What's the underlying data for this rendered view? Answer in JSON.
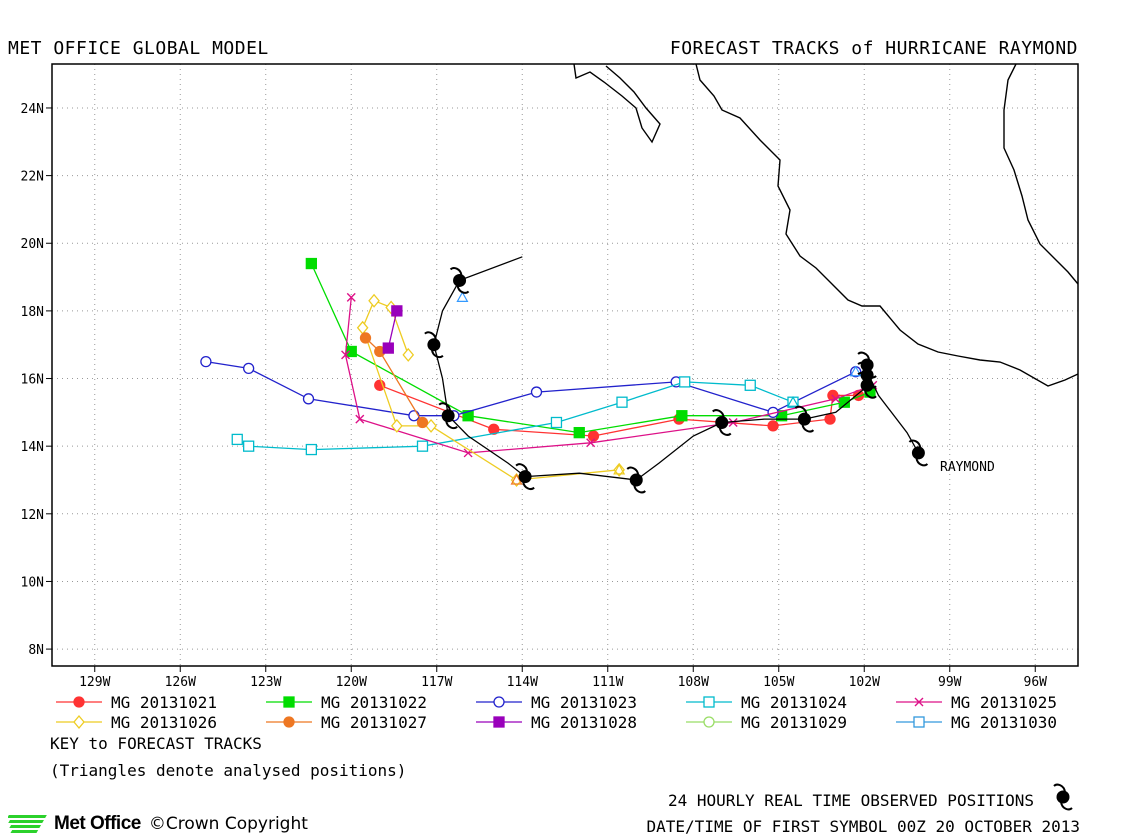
{
  "header": {
    "left": "MET OFFICE GLOBAL MODEL",
    "right": "FORECAST TRACKS of HURRICANE RAYMOND"
  },
  "map": {
    "lon_range": [
      -130.5,
      -94.5
    ],
    "lat_range": [
      7.5,
      25.3
    ],
    "lon_ticks": [
      "129W",
      "126W",
      "123W",
      "120W",
      "117W",
      "114W",
      "111W",
      "108W",
      "105W",
      "102W",
      "99W",
      "96W"
    ],
    "lat_ticks": [
      "8N",
      "10N",
      "12N",
      "14N",
      "16N",
      "18N",
      "20N",
      "22N",
      "24N"
    ],
    "storm_label": "RAYMOND",
    "observed_color": "#000000",
    "observed_track": [
      [
        -114.0,
        19.6
      ],
      [
        -116.2,
        18.9
      ],
      [
        -116.8,
        18.0
      ],
      [
        -117.1,
        17.0
      ],
      [
        -116.8,
        16.0
      ],
      [
        -116.6,
        14.9
      ],
      [
        -115.9,
        14.3
      ],
      [
        -114.5,
        13.5
      ],
      [
        -113.9,
        13.1
      ],
      [
        -112.0,
        13.2
      ],
      [
        -110.0,
        13.0
      ],
      [
        -109.2,
        13.5
      ],
      [
        -108.0,
        14.3
      ],
      [
        -107.0,
        14.7
      ],
      [
        -105.5,
        14.8
      ],
      [
        -104.1,
        14.8
      ],
      [
        -103.0,
        15.0
      ],
      [
        -102.0,
        15.7
      ],
      [
        -101.9,
        16.2
      ],
      [
        -101.5,
        15.5
      ],
      [
        -100.5,
        14.4
      ],
      [
        -100.1,
        13.8
      ]
    ],
    "observed_symbols": [
      [
        -116.2,
        18.9
      ],
      [
        -117.1,
        17.0
      ],
      [
        -116.6,
        14.9
      ],
      [
        -113.9,
        13.1
      ],
      [
        -110.0,
        13.0
      ],
      [
        -107.0,
        14.7
      ],
      [
        -104.1,
        14.8
      ],
      [
        -101.9,
        16.4
      ],
      [
        -101.9,
        16.1
      ],
      [
        -101.9,
        15.8
      ],
      [
        -100.1,
        13.8
      ]
    ],
    "tracks": [
      {
        "name": "MG 20131021",
        "color": "#ff3333",
        "marker": "circle",
        "fill": true,
        "points": [
          [
            -102.2,
            15.5
          ],
          [
            -103.1,
            15.5
          ],
          [
            -103.2,
            14.8
          ],
          [
            -105.2,
            14.6
          ],
          [
            -108.5,
            14.8
          ],
          [
            -111.5,
            14.3
          ],
          [
            -115.0,
            14.5
          ],
          [
            -119.0,
            15.8
          ]
        ]
      },
      {
        "name": "MG 20131022",
        "color": "#00dd00",
        "marker": "square",
        "fill": true,
        "points": [
          [
            -101.8,
            15.6
          ],
          [
            -102.7,
            15.3
          ],
          [
            -104.9,
            14.9
          ],
          [
            -108.4,
            14.9
          ],
          [
            -112.0,
            14.4
          ],
          [
            -115.9,
            14.9
          ],
          [
            -120.0,
            16.8
          ],
          [
            -121.4,
            19.4
          ]
        ]
      },
      {
        "name": "MG 20131023",
        "color": "#2222cc",
        "marker": "circle",
        "fill": false,
        "points": [
          [
            -102.3,
            16.2
          ],
          [
            -105.2,
            15.0
          ],
          [
            -108.6,
            15.9
          ],
          [
            -113.5,
            15.6
          ],
          [
            -116.4,
            14.9
          ],
          [
            -117.8,
            14.9
          ],
          [
            -121.5,
            15.4
          ],
          [
            -123.6,
            16.3
          ],
          [
            -125.1,
            16.5
          ]
        ]
      },
      {
        "name": "MG 20131024",
        "color": "#00bbcc",
        "marker": "square",
        "fill": false,
        "points": [
          [
            -104.5,
            15.3
          ],
          [
            -106.0,
            15.8
          ],
          [
            -108.3,
            15.9
          ],
          [
            -110.5,
            15.3
          ],
          [
            -112.8,
            14.7
          ],
          [
            -117.5,
            14.0
          ],
          [
            -121.4,
            13.9
          ],
          [
            -123.6,
            14.0
          ],
          [
            -124.0,
            14.2
          ]
        ]
      },
      {
        "name": "MG 20131025",
        "color": "#dd1188",
        "marker": "x",
        "fill": false,
        "points": [
          [
            -101.7,
            15.8
          ],
          [
            -103.0,
            15.4
          ],
          [
            -106.6,
            14.7
          ],
          [
            -111.6,
            14.1
          ],
          [
            -115.9,
            13.8
          ],
          [
            -119.7,
            14.8
          ],
          [
            -120.2,
            16.7
          ],
          [
            -120.0,
            18.4
          ]
        ]
      },
      {
        "name": "MG 20131026",
        "color": "#eecc22",
        "marker": "diamond",
        "fill": false,
        "points": [
          [
            -110.6,
            13.3
          ],
          [
            -114.2,
            13.0
          ],
          [
            -117.2,
            14.6
          ],
          [
            -118.4,
            14.6
          ],
          [
            -119.6,
            17.5
          ],
          [
            -119.2,
            18.3
          ],
          [
            -118.6,
            18.1
          ],
          [
            -118.0,
            16.7
          ]
        ]
      },
      {
        "name": "MG 20131027",
        "color": "#ee7722",
        "marker": "circle",
        "fill": true,
        "points": [
          [
            -117.5,
            14.7
          ],
          [
            -119.0,
            16.8
          ],
          [
            -119.5,
            17.2
          ]
        ]
      },
      {
        "name": "MG 20131028",
        "color": "#9900bb",
        "marker": "square",
        "fill": true,
        "points": [
          [
            -118.7,
            16.9
          ],
          [
            -118.4,
            18.0
          ]
        ]
      },
      {
        "name": "MG 20131029",
        "color": "#99dd66",
        "marker": "circle",
        "fill": false,
        "points": []
      },
      {
        "name": "MG 20131030",
        "color": "#3399dd",
        "marker": "square",
        "fill": false,
        "points": []
      }
    ],
    "analysed": [
      {
        "color": "#3399ff",
        "pos": [
          -116.1,
          18.4
        ]
      },
      {
        "color": "#3399ff",
        "pos": [
          -102.3,
          16.2
        ]
      },
      {
        "color": "#00bbcc",
        "pos": [
          -104.5,
          15.3
        ]
      },
      {
        "color": "#ee7722",
        "pos": [
          -114.2,
          13.0
        ]
      },
      {
        "color": "#eecc22",
        "pos": [
          -110.6,
          13.3
        ]
      }
    ]
  },
  "legend": [
    {
      "label": "MG 20131021"
    },
    {
      "label": "MG 20131022"
    },
    {
      "label": "MG 20131023"
    },
    {
      "label": "MG 20131024"
    },
    {
      "label": "MG 20131025"
    },
    {
      "label": "MG 20131026"
    },
    {
      "label": "MG 20131027"
    },
    {
      "label": "MG 20131028"
    },
    {
      "label": "MG 20131029"
    },
    {
      "label": "MG 20131030"
    }
  ],
  "key": {
    "title": "KEY to FORECAST TRACKS",
    "note": "(Triangles denote analysed positions)"
  },
  "footer": {
    "observed": "24 HOURLY REAL TIME OBSERVED POSITIONS",
    "date": "DATE/TIME OF FIRST SYMBOL 00Z 20 OCTOBER 2013",
    "brand": "Met Office",
    "copyright": "©Crown Copyright"
  }
}
